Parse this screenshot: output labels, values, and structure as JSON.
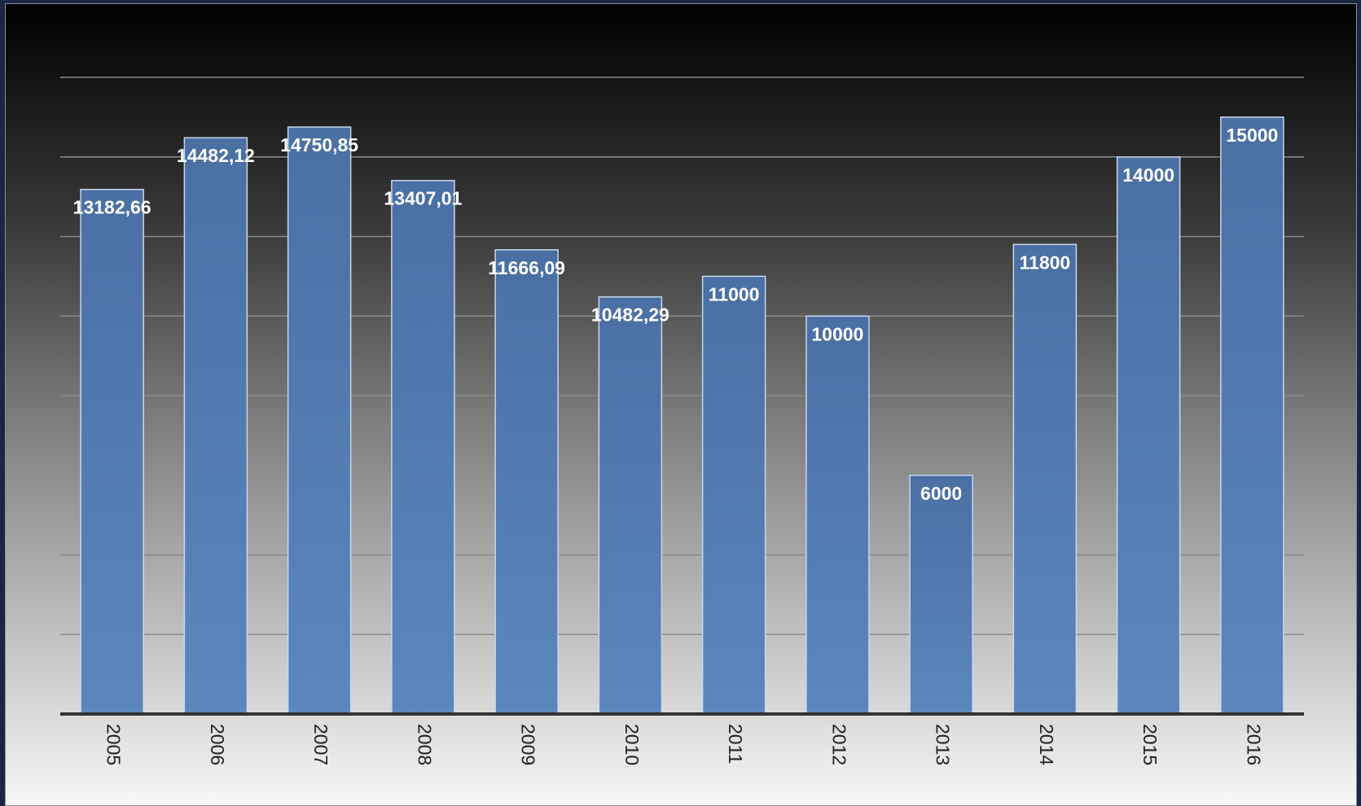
{
  "chart_data": {
    "type": "bar",
    "title": "",
    "xlabel": "",
    "ylabel": "",
    "categories": [
      "2005",
      "2006",
      "2007",
      "2008",
      "2009",
      "2010",
      "2011",
      "2012",
      "2013",
      "2014",
      "2015",
      "2016"
    ],
    "values": [
      13182.66,
      14482.12,
      14750.85,
      13407.01,
      11666.09,
      10482.29,
      11000,
      10000,
      6000,
      11800,
      14000,
      15000
    ],
    "value_labels": [
      "13182,66",
      "14482,12",
      "14750,85",
      "13407,01",
      "11666,09",
      "10482,29",
      "11000",
      "10000",
      "6000",
      "11800",
      "14000",
      "15000"
    ],
    "ylim": [
      0,
      16000
    ],
    "grid": true,
    "legend": "none",
    "colors": {
      "bar": "#5b87bd",
      "bar_top": "#4a6fa3",
      "bar_border": "#c9d6ea",
      "grid": "#8a8a8a",
      "axis": "#333333"
    }
  }
}
